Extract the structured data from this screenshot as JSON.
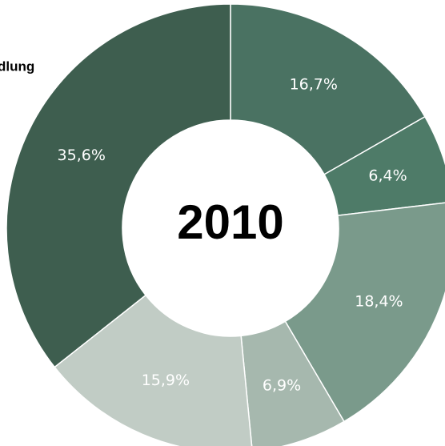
{
  "chart_data": {
    "type": "donut",
    "title": "2010",
    "label": "dlung",
    "values": [
      16.7,
      6.4,
      18.4,
      6.9,
      15.9,
      35.6
    ],
    "value_labels": [
      "16,7%",
      "6,4%",
      "18,4%",
      "6,9%",
      "15,9%",
      "35,6%"
    ],
    "colors": [
      "#4a7262",
      "#4e7b68",
      "#7a9a8b",
      "#a6b8ae",
      "#c1ccc5",
      "#3e5e4f"
    ]
  }
}
